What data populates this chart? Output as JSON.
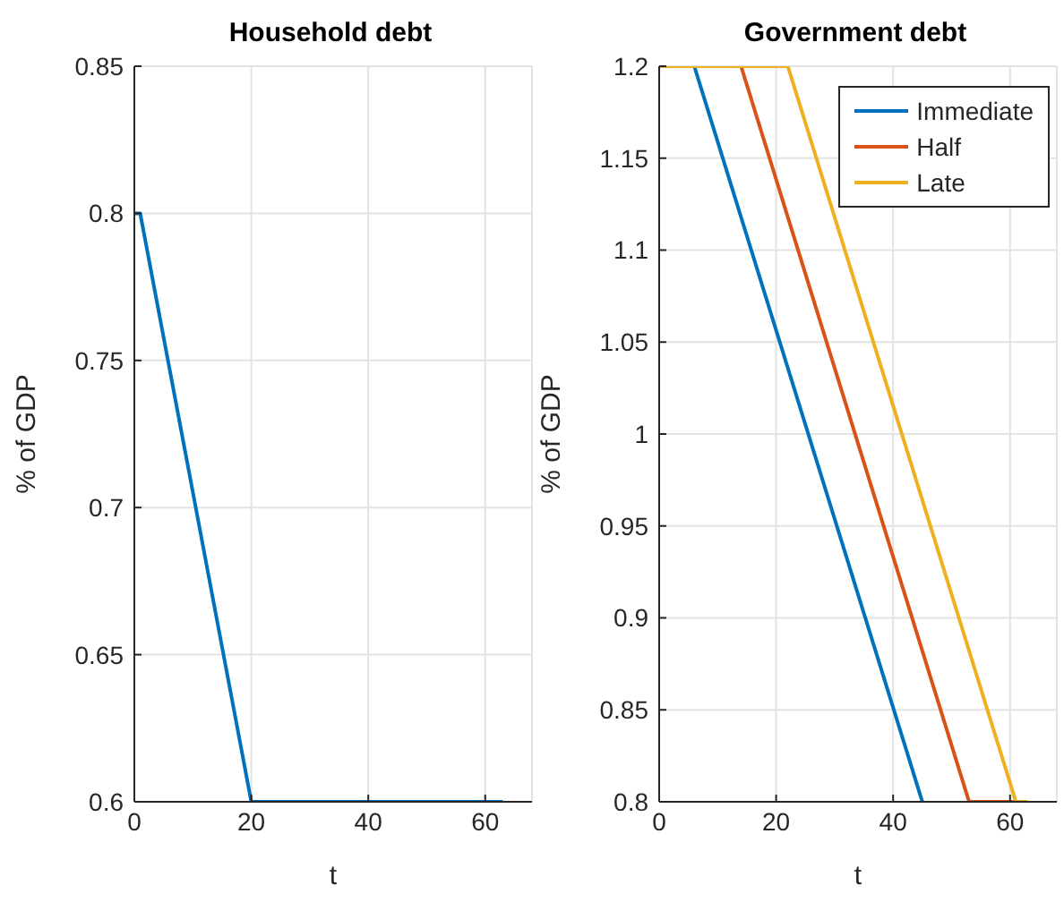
{
  "chart_data": [
    {
      "type": "line",
      "title": "Household debt",
      "xlabel": "t",
      "ylabel": "% of GDP",
      "xlim": [
        0,
        68
      ],
      "xticks": [
        0,
        20,
        40,
        60
      ],
      "ylim": [
        0.6,
        0.85
      ],
      "yticks": [
        0.6,
        0.65,
        0.7,
        0.75,
        0.8,
        0.85
      ],
      "grid": true,
      "legend": false,
      "series": [
        {
          "color": "#0072bd",
          "x": [
            0,
            1,
            20,
            63
          ],
          "values": [
            0.8,
            0.8,
            0.6,
            0.6
          ]
        }
      ]
    },
    {
      "type": "line",
      "title": "Government debt",
      "xlabel": "t",
      "ylabel": "% of GDP",
      "xlim": [
        0,
        68
      ],
      "xticks": [
        0,
        20,
        40,
        60
      ],
      "ylim": [
        0.8,
        1.2
      ],
      "yticks": [
        0.8,
        0.85,
        0.9,
        0.95,
        1,
        1.05,
        1.1,
        1.15,
        1.2
      ],
      "grid": true,
      "legend": "top right",
      "series": [
        {
          "name": "Immediate",
          "color": "#0072bd",
          "x": [
            0,
            6,
            45
          ],
          "values": [
            1.2,
            1.2,
            0.8
          ]
        },
        {
          "name": "Half",
          "color": "#d95319",
          "x": [
            0,
            14,
            53,
            61
          ],
          "values": [
            1.2,
            1.2,
            0.8,
            0.8
          ]
        },
        {
          "name": "Late",
          "color": "#edb120",
          "x": [
            0,
            22,
            61,
            63
          ],
          "values": [
            1.2,
            1.2,
            0.8,
            0.8
          ]
        }
      ]
    }
  ]
}
